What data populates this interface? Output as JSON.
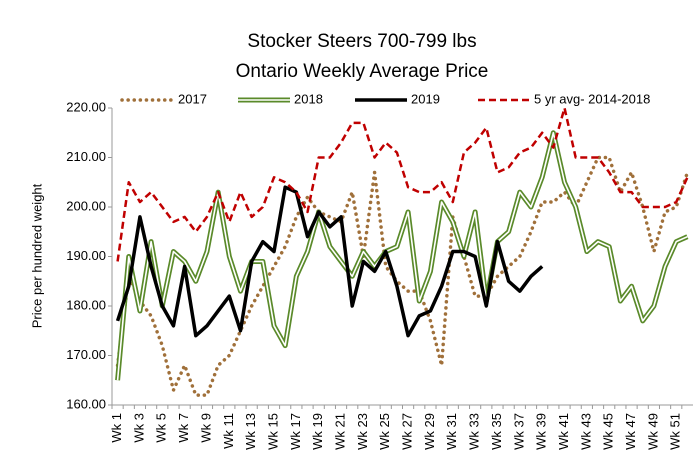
{
  "chart_data": {
    "type": "line",
    "title": [
      "Stocker Steers 700-799 lbs",
      "Ontario Weekly Average Price"
    ],
    "y_label": "Price per hundred weight",
    "categories": [
      "Wk 1",
      null,
      "Wk 3",
      null,
      "Wk 5",
      null,
      "Wk 7",
      null,
      "Wk 9",
      null,
      "Wk 11",
      null,
      "Wk 13",
      null,
      "Wk 15",
      null,
      "Wk 17",
      null,
      "Wk 19",
      null,
      "Wk 21",
      null,
      "Wk 23",
      null,
      "Wk 25",
      null,
      "Wk 27",
      null,
      "Wk 29",
      null,
      "Wk 31",
      null,
      "Wk 33",
      null,
      "Wk 35",
      null,
      "Wk 37",
      null,
      "Wk 39",
      null,
      "Wk 41",
      null,
      "Wk 43",
      null,
      "Wk 45",
      null,
      "Wk 47",
      null,
      "Wk 49",
      null,
      "Wk 51",
      null
    ],
    "series": [
      {
        "name": "2017",
        "color": "#a0703a",
        "style": "dotted",
        "values": [
          168,
          186,
          181,
          178,
          172,
          163,
          168,
          162,
          162,
          168,
          170,
          175,
          180,
          184,
          188,
          192,
          198,
          202,
          199,
          198,
          197,
          203,
          190,
          207,
          188,
          185,
          183,
          183,
          177,
          168,
          198,
          190,
          182,
          182,
          186,
          188,
          190,
          195,
          201,
          201,
          203,
          200,
          205,
          210,
          210,
          203,
          207,
          200,
          191,
          199,
          200,
          207
        ]
      },
      {
        "name": "2018",
        "color": "#5a8a2a",
        "style": "double",
        "values": [
          165,
          190,
          179,
          193,
          180,
          191,
          189,
          185,
          191,
          203,
          190,
          183,
          189,
          189,
          176,
          172,
          186,
          191,
          199,
          192,
          189,
          186,
          191,
          188,
          191,
          192,
          199,
          181,
          187,
          201,
          197,
          190,
          199,
          181,
          193,
          195,
          203,
          200,
          206,
          215,
          205,
          200,
          191,
          193,
          192,
          181,
          184,
          177,
          180,
          188,
          193,
          194
        ]
      },
      {
        "name": "2019",
        "color": "#000000",
        "style": "solid",
        "values": [
          177,
          184,
          198,
          188,
          180,
          176,
          188,
          174,
          176,
          179,
          182,
          175,
          189,
          193,
          191,
          204,
          203,
          194,
          199,
          196,
          198,
          180,
          189,
          187,
          191,
          184,
          174,
          178,
          179,
          184,
          191,
          191,
          190,
          180,
          193,
          185,
          183,
          186,
          188,
          null,
          null,
          null,
          null,
          null,
          null,
          null,
          null,
          null,
          null,
          null,
          null,
          null
        ]
      },
      {
        "name": "5 yr avg- 2014-2018",
        "color": "#c00000",
        "style": "dashed",
        "values": [
          189,
          205,
          201,
          203,
          200,
          197,
          198,
          195,
          198,
          203,
          197,
          203,
          198,
          200,
          206,
          205,
          203,
          199,
          210,
          210,
          213,
          217,
          217,
          210,
          213,
          211,
          204,
          203,
          203,
          205,
          201,
          211,
          213,
          216,
          207,
          208,
          211,
          212,
          215,
          212,
          220,
          210,
          210,
          210,
          207,
          203,
          203,
          200,
          200,
          200,
          201,
          206
        ]
      }
    ],
    "ylim": [
      160,
      220
    ],
    "yticks": [
      {
        "value": 160,
        "label": "160.00"
      },
      {
        "value": 170,
        "label": "170.00"
      },
      {
        "value": 180,
        "label": "180.00"
      },
      {
        "value": 190,
        "label": "190.00"
      },
      {
        "value": 200,
        "label": "200.00"
      },
      {
        "value": 210,
        "label": "210.00"
      },
      {
        "value": 220,
        "label": "220.00"
      }
    ],
    "grid": false,
    "legend": "top"
  }
}
